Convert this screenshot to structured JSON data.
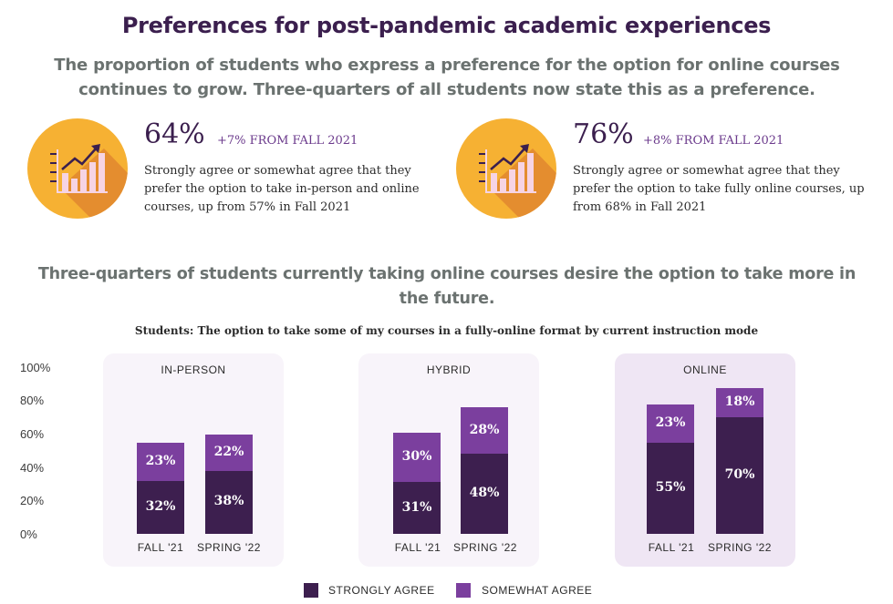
{
  "header": {
    "title": "Preferences for post-pandemic academic experiences",
    "subtitle": "The proportion of students who express a preference for the option for online courses continues to grow. Three-quarters of all students now state this as a preference."
  },
  "stats": [
    {
      "percent": "64%",
      "change": "+7% FROM FALL 2021",
      "description": "Strongly agree or somewhat agree that they prefer the option to take in-person and online courses, up from 57% in Fall 2021",
      "icon": "growth-chart-icon"
    },
    {
      "percent": "76%",
      "change": "+8% FROM FALL 2021",
      "description": "Strongly agree or somewhat agree that they prefer the option to take fully online courses, up from 68% in Fall 2021",
      "icon": "growth-chart-icon"
    }
  ],
  "section": {
    "title": "Three-quarters of students currently taking online courses desire the option to take more in the future."
  },
  "colors": {
    "strongly": "#3d1f4f",
    "somewhat": "#7b3f9e",
    "accent": "#f6b133",
    "panel_light": "#f8f4fa",
    "panel_online": "#efe6f4"
  },
  "chart_data": {
    "type": "bar",
    "stacked": true,
    "title": "Students: The option to take some of my courses in a fully-online format by current instruction mode",
    "ylim": [
      0,
      100
    ],
    "y_ticks": [
      "100%",
      "80%",
      "60%",
      "40%",
      "20%",
      "0%"
    ],
    "legend": [
      "STRONGLY AGREE",
      "SOMEWHAT AGREE"
    ],
    "legend_position": "bottom",
    "groups": [
      {
        "name": "IN-PERSON",
        "categories": [
          "FALL '21",
          "SPRING '22"
        ],
        "strongly": [
          32,
          38
        ],
        "somewhat": [
          23,
          22
        ],
        "strongly_labels": [
          "32%",
          "38%"
        ],
        "somewhat_labels": [
          "23%",
          "22%"
        ]
      },
      {
        "name": "HYBRID",
        "categories": [
          "FALL '21",
          "SPRING '22"
        ],
        "strongly": [
          31,
          48
        ],
        "somewhat": [
          30,
          28
        ],
        "strongly_labels": [
          "31%",
          "48%"
        ],
        "somewhat_labels": [
          "30%",
          "28%"
        ]
      },
      {
        "name": "ONLINE",
        "categories": [
          "FALL '21",
          "SPRING '22"
        ],
        "strongly": [
          55,
          70
        ],
        "somewhat": [
          23,
          18
        ],
        "strongly_labels": [
          "55%",
          "70%"
        ],
        "somewhat_labels": [
          "23%",
          "18%"
        ]
      }
    ]
  }
}
